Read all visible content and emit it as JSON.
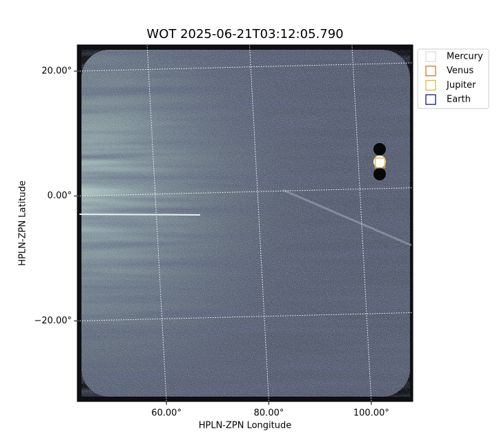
{
  "chart_data": {
    "type": "image",
    "title": "WOT 2025-06-21T03:12:05.790",
    "xlabel": "HPLN-ZPN Longitude",
    "ylabel": "HPLN-ZPN Latitude",
    "xlim": [
      42.6,
      108.1
    ],
    "ylim": [
      -32.9,
      24.2
    ],
    "xticks": [
      {
        "value": 60,
        "label": "60.00°"
      },
      {
        "value": 80,
        "label": "80.00°"
      },
      {
        "value": 100,
        "label": "100.00°"
      }
    ],
    "yticks": [
      {
        "value": 20,
        "label": "20.00°"
      },
      {
        "value": 0,
        "label": "0.00°"
      },
      {
        "value": -20,
        "label": "−20.00°"
      }
    ],
    "grid": true,
    "legend": "upper right outside",
    "series": [
      {
        "name": "Mercury",
        "color": "#d9d9d9",
        "x": [],
        "y": []
      },
      {
        "name": "Venus",
        "color": "#d2691e",
        "x": [
          101.7
        ],
        "y": [
          5.3
        ]
      },
      {
        "name": "Jupiter",
        "color": "#e6b422",
        "x": [
          101.7
        ],
        "y": [
          5.3
        ]
      },
      {
        "name": "Earth",
        "color": "#000080",
        "x": [],
        "y": []
      }
    ]
  }
}
